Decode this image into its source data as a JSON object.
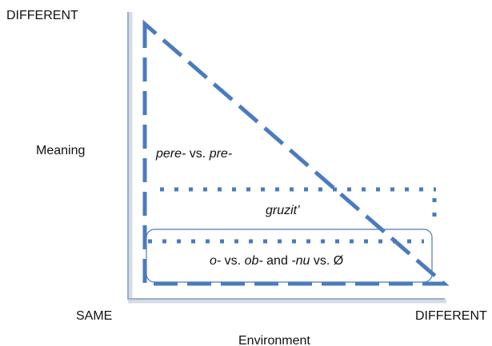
{
  "axes": {
    "y_top": "DIFFERENT",
    "y_label": "Meaning",
    "origin": "SAME",
    "x_right": "DIFFERENT",
    "x_label": "Environment"
  },
  "regions": [
    {
      "parts": [
        {
          "text": "pere-",
          "italic": true
        },
        {
          "text": " vs. ",
          "italic": false
        },
        {
          "text": "pre-",
          "italic": true
        }
      ]
    },
    {
      "parts": [
        {
          "text": "gruzit’",
          "italic": true
        }
      ]
    },
    {
      "parts": [
        {
          "text": "o-",
          "italic": true
        },
        {
          "text": " vs. ",
          "italic": false
        },
        {
          "text": "ob-",
          "italic": true
        },
        {
          "text": " and ",
          "italic": false
        },
        {
          "text": "-nu",
          "italic": true
        },
        {
          "text": " vs. Ø",
          "italic": false
        }
      ]
    }
  ]
}
